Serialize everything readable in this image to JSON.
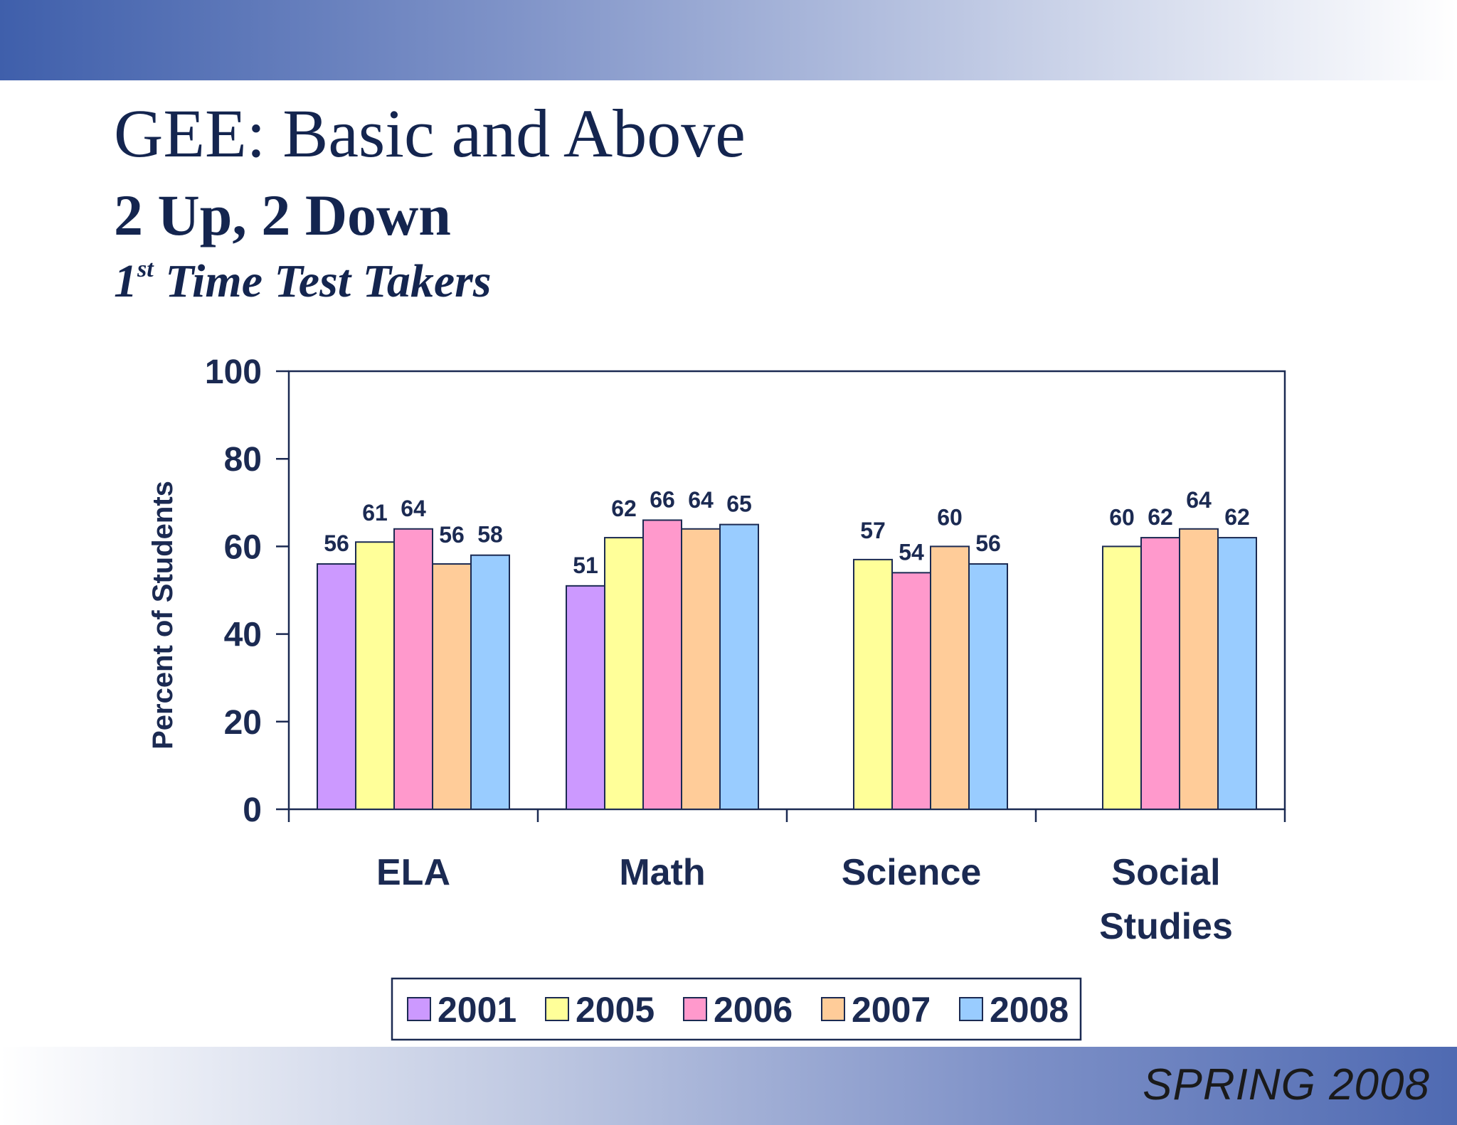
{
  "slide": {
    "title": "GEE: Basic and Above",
    "subtitle": "2 Up, 2 Down",
    "subtitle2_super": "st",
    "subtitle2_prefix": "1",
    "subtitle2_rest": " Time Test Takers",
    "footer": "SPRING 2008"
  },
  "colors": {
    "2001": "#cc99ff",
    "2005": "#ffff99",
    "2006": "#ff99cc",
    "2007": "#ffcc99",
    "2008": "#99ccff",
    "text": "#1b2a52",
    "title": "#14254f"
  },
  "chart_data": {
    "type": "bar",
    "ylabel": "Percent of Students",
    "xlabel": "",
    "ylim": [
      0,
      100
    ],
    "yticks": [
      0,
      20,
      40,
      60,
      80,
      100
    ],
    "grid": false,
    "legend_position": "bottom",
    "categories": [
      [
        "ELA"
      ],
      [
        "Math"
      ],
      [
        "Science"
      ],
      [
        "Social",
        "Studies"
      ]
    ],
    "series": [
      {
        "name": "2001",
        "values": [
          56,
          51,
          null,
          null
        ]
      },
      {
        "name": "2005",
        "values": [
          61,
          62,
          57,
          60
        ]
      },
      {
        "name": "2006",
        "values": [
          64,
          66,
          54,
          62
        ]
      },
      {
        "name": "2007",
        "values": [
          56,
          64,
          60,
          64
        ]
      },
      {
        "name": "2008",
        "values": [
          58,
          65,
          56,
          62
        ]
      }
    ]
  }
}
